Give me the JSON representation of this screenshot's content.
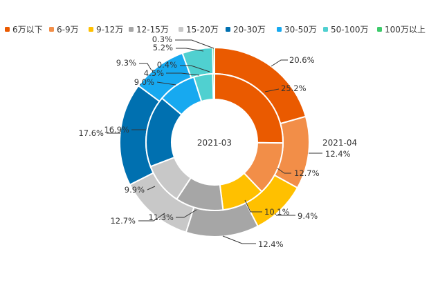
{
  "chart_data": {
    "type": "pie",
    "subtype": "nested-donut",
    "categories": [
      "6万以下",
      "6-9万",
      "9-12万",
      "12-15万",
      "15-20万",
      "20-30万",
      "30-50万",
      "50-100万",
      "100万以上"
    ],
    "colors": [
      "#EA5A00",
      "#F28E48",
      "#FFC000",
      "#A6A6A6",
      "#C8C8C8",
      "#0070B0",
      "#17A9F0",
      "#50D0D0",
      "#3DCB6B"
    ],
    "series": [
      {
        "name": "2021-03",
        "ring": "inner",
        "values": [
          25.2,
          12.7,
          10.1,
          11.3,
          9.9,
          16.9,
          9.0,
          4.5,
          0.4
        ],
        "labels": [
          "25.2%",
          "12.7%",
          "10.1%",
          "11.3%",
          "9.9%",
          "16.9%",
          "9.0%",
          "4.5%",
          "0.4%"
        ]
      },
      {
        "name": "2021-04",
        "ring": "outer",
        "values": [
          20.6,
          12.4,
          9.4,
          12.4,
          12.7,
          17.6,
          9.3,
          5.2,
          0.3
        ],
        "labels": [
          "20.6%",
          "12.4%",
          "9.4%",
          "12.4%",
          "12.7%",
          "17.6%",
          "9.3%",
          "5.2%",
          "0.3%"
        ]
      }
    ],
    "legend_position": "top",
    "center_label": "2021-03",
    "outer_label": "2021-04"
  }
}
